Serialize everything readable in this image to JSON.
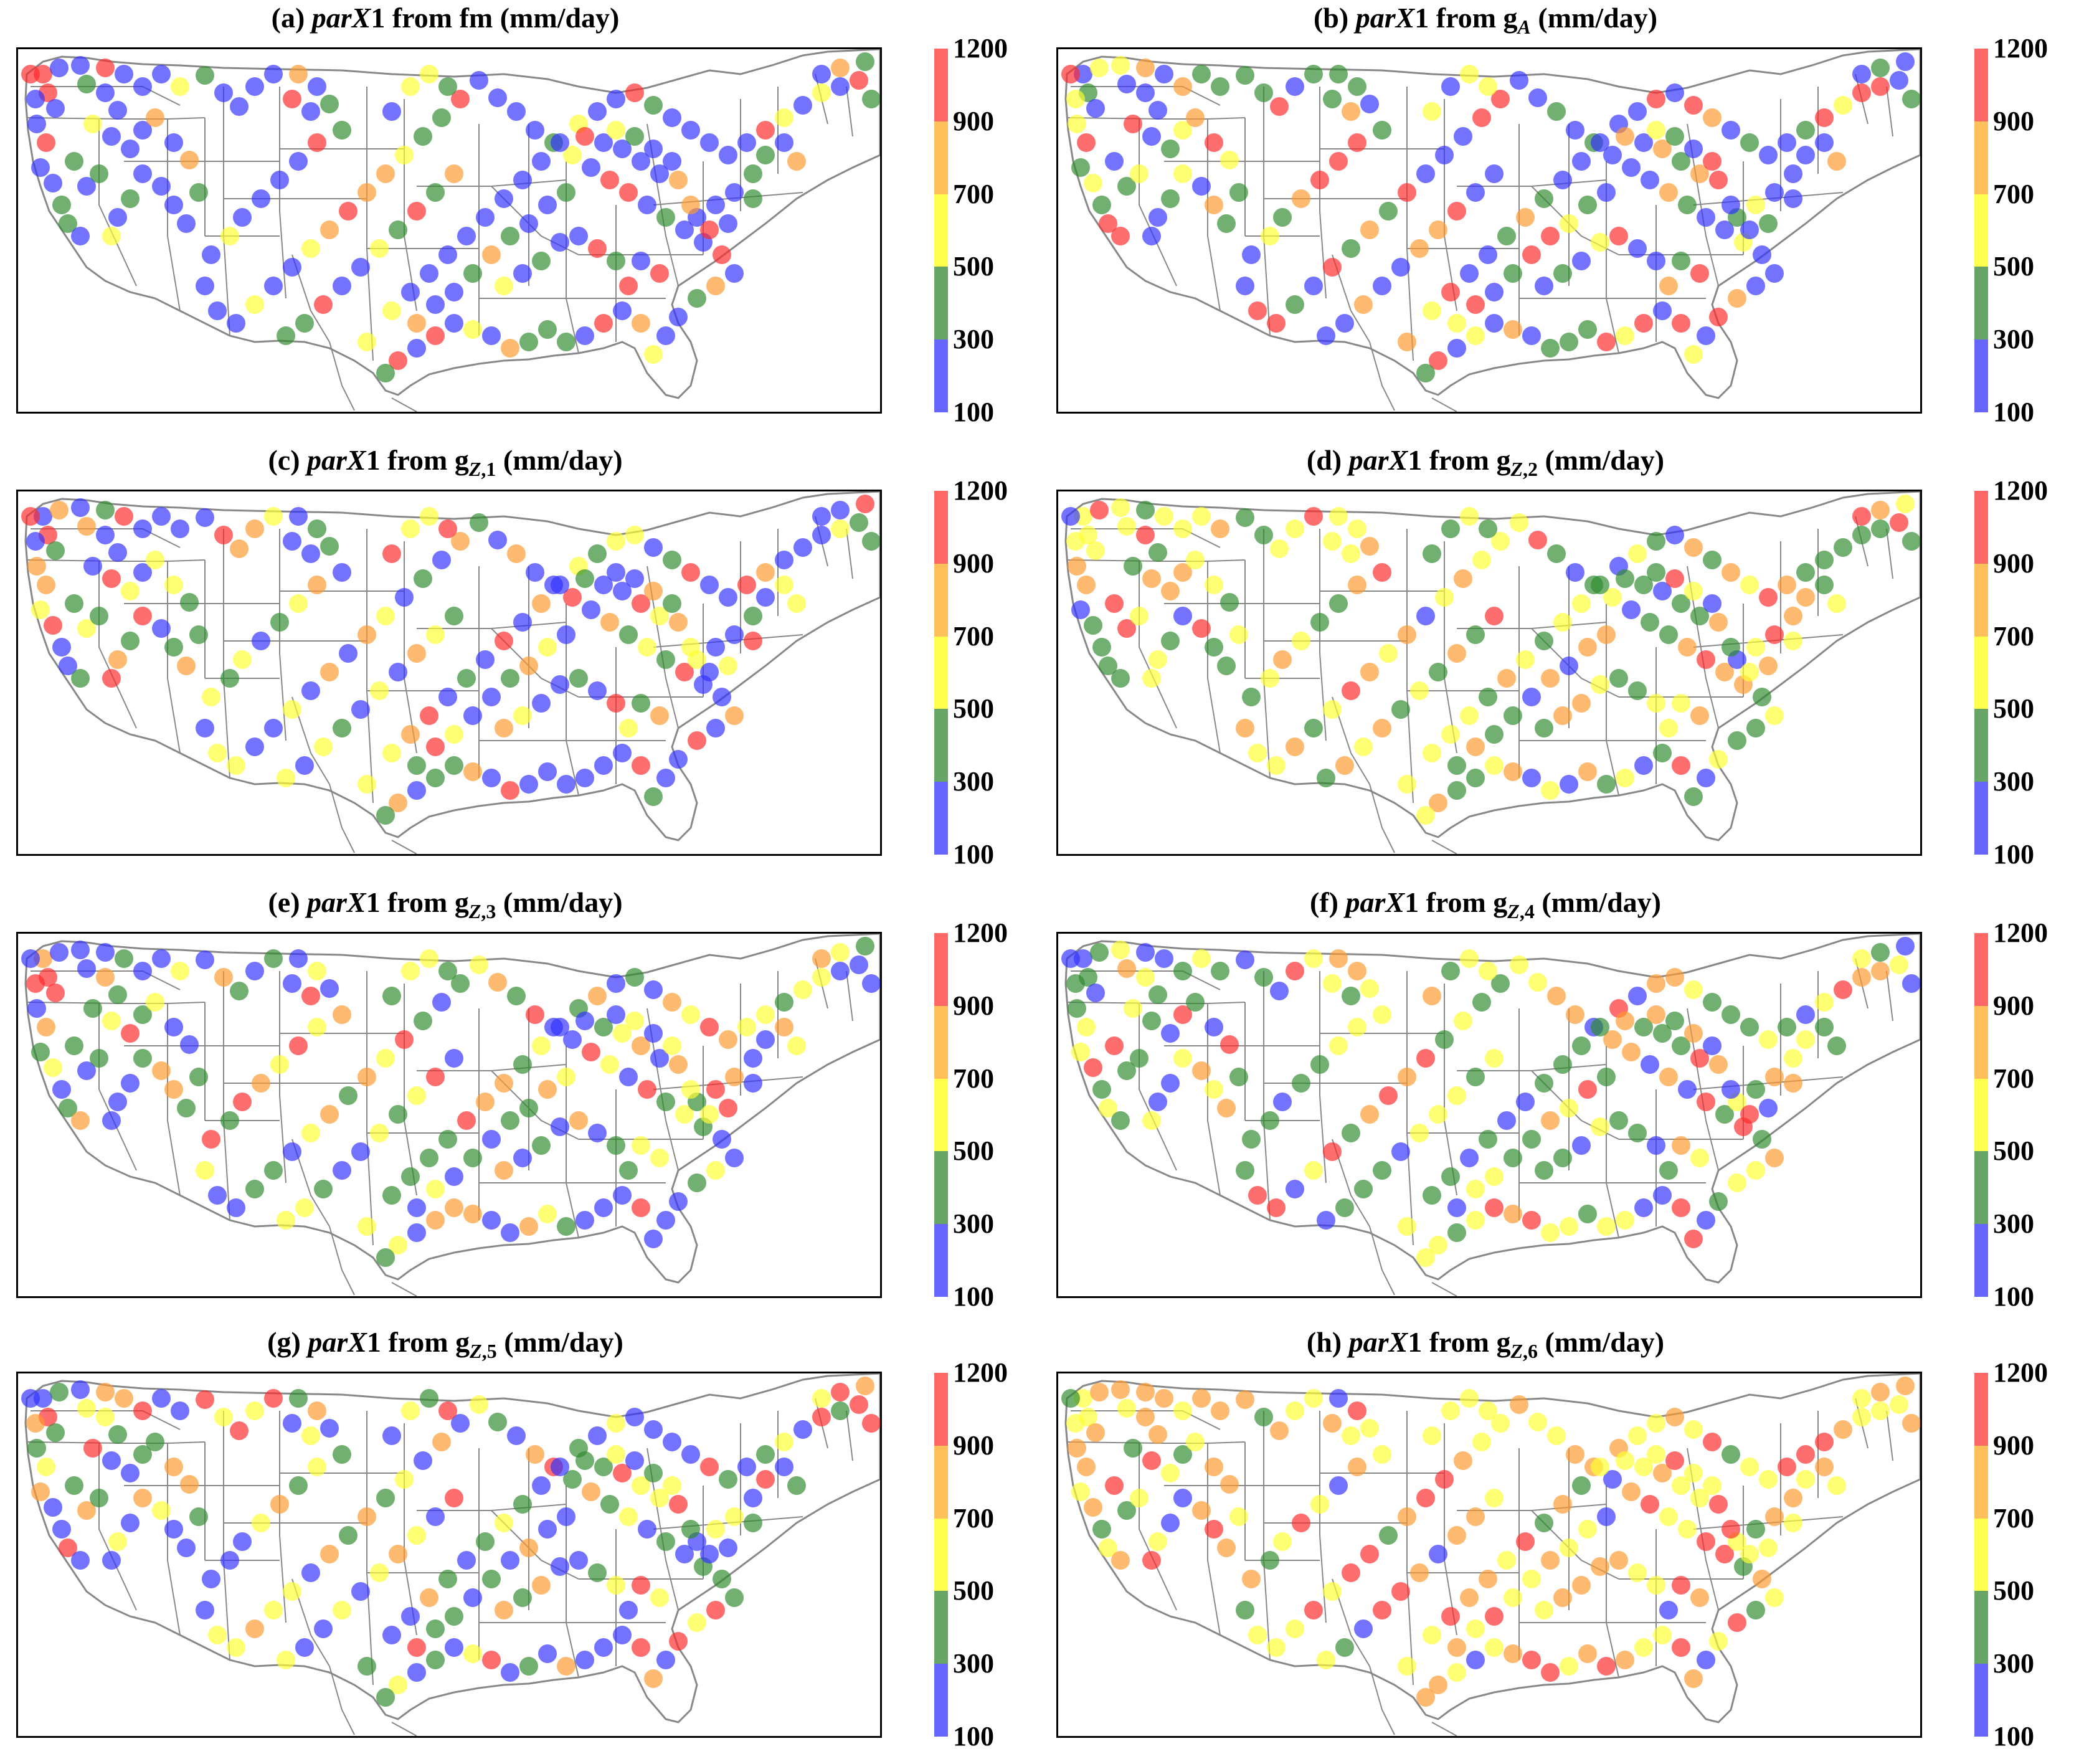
{
  "colorbar": {
    "ticks": [
      "1200",
      "900",
      "700",
      "500",
      "300",
      "100"
    ],
    "colors": [
      "#ff6666",
      "#ffbf5a",
      "#ffff4d",
      "#66a566",
      "#6666ff"
    ]
  },
  "base_map": {
    "border_color": "#888888",
    "note": ""
  },
  "panels": [
    {
      "label": "(a)",
      "var_name": "parX1",
      "from_word": "from",
      "source": "fm",
      "sub": "",
      "unit": "(mm/day)",
      "dominant_colors": [
        "#3030ff",
        "#2e8b2e",
        "#ffff30",
        "#ff9a2e",
        "#ff2a2a"
      ],
      "color_weights": [
        0.45,
        0.22,
        0.13,
        0.08,
        0.12
      ]
    },
    {
      "label": "(b)",
      "var_name": "parX1",
      "from_word": "from",
      "source": "g",
      "sub": "A",
      "unit": "(mm/day)",
      "dominant_colors": [
        "#3030ff",
        "#2e8b2e",
        "#ffff30",
        "#ff9a2e",
        "#ff2a2a"
      ],
      "color_weights": [
        0.35,
        0.2,
        0.18,
        0.1,
        0.17
      ]
    },
    {
      "label": "(c)",
      "var_name": "parX1",
      "from_word": "from",
      "source": "g",
      "sub": "Z,1",
      "unit": "(mm/day)",
      "dominant_colors": [
        "#3030ff",
        "#2e8b2e",
        "#ffff30",
        "#ff9a2e",
        "#ff2a2a"
      ],
      "color_weights": [
        0.4,
        0.18,
        0.15,
        0.14,
        0.13
      ]
    },
    {
      "label": "(d)",
      "var_name": "parX1",
      "from_word": "from",
      "source": "g",
      "sub": "Z,2",
      "unit": "(mm/day)",
      "dominant_colors": [
        "#3030ff",
        "#2e8b2e",
        "#ffff30",
        "#ff9a2e",
        "#ff2a2a"
      ],
      "color_weights": [
        0.12,
        0.3,
        0.3,
        0.18,
        0.1
      ]
    },
    {
      "label": "(e)",
      "var_name": "parX1",
      "from_word": "from",
      "source": "g",
      "sub": "Z,3",
      "unit": "(mm/day)",
      "dominant_colors": [
        "#3030ff",
        "#2e8b2e",
        "#ffff30",
        "#ff9a2e",
        "#ff2a2a"
      ],
      "color_weights": [
        0.28,
        0.26,
        0.2,
        0.14,
        0.12
      ]
    },
    {
      "label": "(f)",
      "var_name": "parX1",
      "from_word": "from",
      "source": "g",
      "sub": "Z,4",
      "unit": "(mm/day)",
      "dominant_colors": [
        "#3030ff",
        "#2e8b2e",
        "#ffff30",
        "#ff9a2e",
        "#ff2a2a"
      ],
      "color_weights": [
        0.2,
        0.32,
        0.24,
        0.14,
        0.1
      ]
    },
    {
      "label": "(g)",
      "var_name": "parX1",
      "from_word": "from",
      "source": "g",
      "sub": "Z,5",
      "unit": "(mm/day)",
      "dominant_colors": [
        "#3030ff",
        "#2e8b2e",
        "#ffff30",
        "#ff9a2e",
        "#ff2a2a"
      ],
      "color_weights": [
        0.3,
        0.26,
        0.2,
        0.12,
        0.12
      ]
    },
    {
      "label": "(h)",
      "var_name": "parX1",
      "from_word": "from",
      "source": "g",
      "sub": "Z,6",
      "unit": "(mm/day)",
      "dominant_colors": [
        "#3030ff",
        "#2e8b2e",
        "#ffff30",
        "#ff9a2e",
        "#ff2a2a"
      ],
      "color_weights": [
        0.05,
        0.08,
        0.34,
        0.35,
        0.18
      ]
    }
  ]
}
